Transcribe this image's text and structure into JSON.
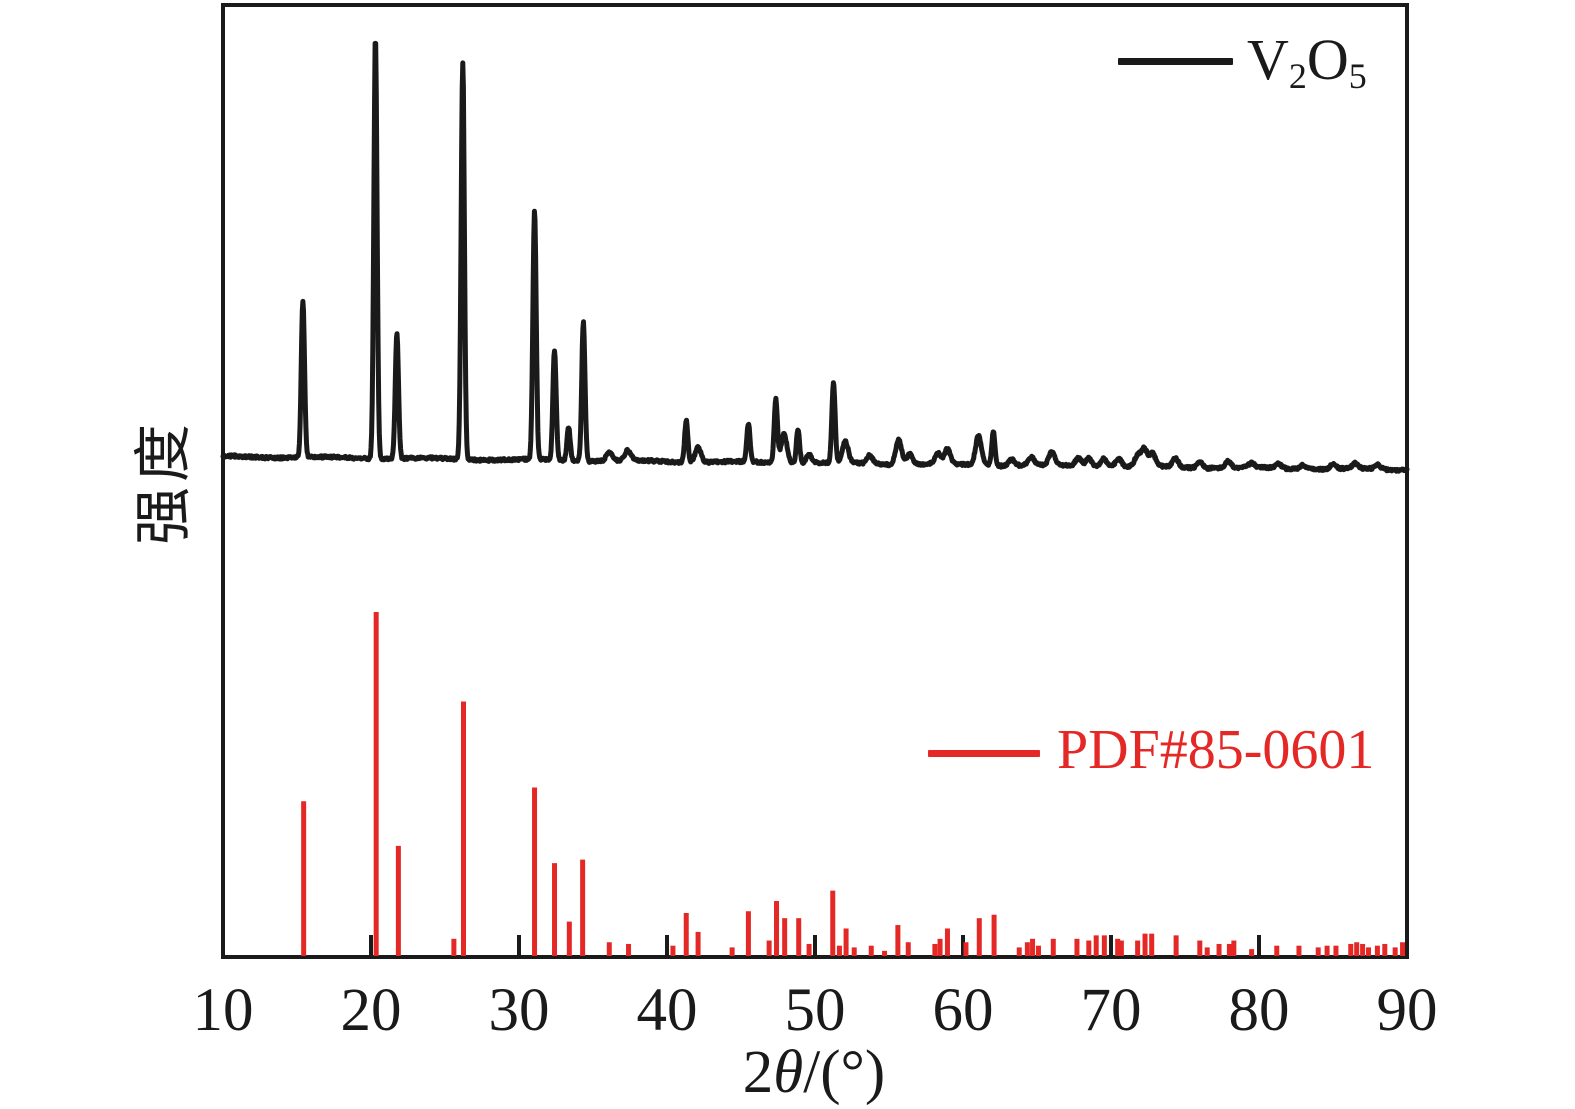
{
  "colors": {
    "axis": "#1a1a1a",
    "trace": "#1a1a1a",
    "reference": "#e32826",
    "background": "#ffffff"
  },
  "axes": {
    "x_tick_labels": [
      "10",
      "20",
      "30",
      "40",
      "50",
      "60",
      "70",
      "80",
      "90"
    ],
    "x_title": {
      "coeff": "2",
      "symbol": "θ",
      "unit": "/(°)"
    },
    "y_title": {
      "label": "强度"
    }
  },
  "legend": {
    "v2o5": {
      "element1": "V",
      "sub1": "2",
      "element2": "O",
      "sub2": "5"
    },
    "pdf": {
      "label": "PDF#85-0601"
    }
  },
  "chart_data": [
    {
      "type": "line",
      "name": "V2O5 measured XRD pattern",
      "legend_label": "V₂O₅",
      "legend_position": "upper right",
      "xlabel": "2θ/(°)",
      "ylabel": "强度",
      "xlim": [
        10,
        90
      ],
      "x_ticks": [
        10,
        20,
        30,
        40,
        50,
        60,
        70,
        80,
        90
      ],
      "grid": false,
      "y_axis": "unlabeled relative intensity, max peak = 100",
      "peaks_2theta_intensity": [
        [
          15.4,
          37
        ],
        [
          20.3,
          100
        ],
        [
          21.75,
          30
        ],
        [
          26.2,
          94
        ],
        [
          31.05,
          59
        ],
        [
          32.4,
          26
        ],
        [
          33.35,
          8
        ],
        [
          34.35,
          33
        ],
        [
          36.1,
          2
        ],
        [
          37.35,
          2.5
        ],
        [
          41.3,
          10
        ],
        [
          42.1,
          3.5
        ],
        [
          45.5,
          9
        ],
        [
          47.35,
          15
        ],
        [
          47.9,
          7
        ],
        [
          48.85,
          8
        ],
        [
          49.6,
          2
        ],
        [
          51.25,
          19
        ],
        [
          52.05,
          5
        ],
        [
          53.7,
          2
        ],
        [
          55.65,
          6
        ],
        [
          56.4,
          2.5
        ],
        [
          58.3,
          2.5
        ],
        [
          58.95,
          3.5
        ],
        [
          61.05,
          7
        ],
        [
          62.05,
          8
        ],
        [
          63.3,
          1.5
        ],
        [
          64.6,
          2
        ],
        [
          66.0,
          3
        ],
        [
          67.8,
          2
        ],
        [
          68.5,
          2
        ],
        [
          69.5,
          2
        ],
        [
          70.5,
          2
        ],
        [
          71.8,
          2.5
        ],
        [
          72.25,
          4
        ],
        [
          72.8,
          3
        ],
        [
          74.35,
          2
        ],
        [
          76.0,
          1.5
        ],
        [
          77.9,
          1.5
        ],
        [
          79.5,
          1
        ],
        [
          81.3,
          1
        ],
        [
          83.0,
          1
        ],
        [
          85.0,
          1
        ],
        [
          86.5,
          1.2
        ],
        [
          88.0,
          1
        ]
      ]
    },
    {
      "type": "bar",
      "name": "PDF#85-0601 reference stick pattern",
      "legend_label": "PDF#85-0601",
      "legend_position": "center right",
      "xlim": [
        10,
        90
      ],
      "y_axis": "relative intensity, max stick = 100",
      "sticks_2theta_intensity": [
        [
          15.45,
          45
        ],
        [
          20.35,
          100
        ],
        [
          21.85,
          32
        ],
        [
          25.6,
          5
        ],
        [
          26.25,
          74
        ],
        [
          31.05,
          49
        ],
        [
          32.4,
          27
        ],
        [
          33.4,
          10
        ],
        [
          34.3,
          28
        ],
        [
          36.1,
          4
        ],
        [
          37.4,
          3.5
        ],
        [
          40.4,
          3
        ],
        [
          41.3,
          12.5
        ],
        [
          42.1,
          7
        ],
        [
          44.4,
          2.5
        ],
        [
          45.5,
          13
        ],
        [
          46.9,
          4.5
        ],
        [
          47.4,
          16
        ],
        [
          47.95,
          11
        ],
        [
          48.9,
          11
        ],
        [
          49.6,
          3.5
        ],
        [
          51.2,
          19
        ],
        [
          51.65,
          3
        ],
        [
          52.1,
          8
        ],
        [
          52.65,
          2.5
        ],
        [
          53.8,
          3
        ],
        [
          54.7,
          1.5
        ],
        [
          55.6,
          9
        ],
        [
          56.3,
          4
        ],
        [
          58.1,
          3.5
        ],
        [
          58.45,
          5
        ],
        [
          58.95,
          8
        ],
        [
          60.2,
          4
        ],
        [
          61.1,
          11
        ],
        [
          62.1,
          12
        ],
        [
          63.8,
          2.5
        ],
        [
          64.35,
          4
        ],
        [
          64.7,
          5
        ],
        [
          65.1,
          3
        ],
        [
          66.1,
          5
        ],
        [
          67.7,
          5
        ],
        [
          68.5,
          4.5
        ],
        [
          69.0,
          6
        ],
        [
          69.55,
          6
        ],
        [
          70.45,
          5
        ],
        [
          70.7,
          4.5
        ],
        [
          71.8,
          4.5
        ],
        [
          72.3,
          6.5
        ],
        [
          72.75,
          6.5
        ],
        [
          74.4,
          6
        ],
        [
          76.0,
          4.5
        ],
        [
          76.5,
          2.5
        ],
        [
          77.3,
          3.5
        ],
        [
          78.0,
          3.5
        ],
        [
          78.3,
          4.5
        ],
        [
          79.5,
          2
        ],
        [
          81.2,
          3
        ],
        [
          82.7,
          3
        ],
        [
          84.0,
          2.5
        ],
        [
          84.6,
          3
        ],
        [
          85.2,
          3
        ],
        [
          86.2,
          3.5
        ],
        [
          86.6,
          4
        ],
        [
          87.0,
          3.5
        ],
        [
          87.4,
          2.5
        ],
        [
          88.0,
          3
        ],
        [
          88.5,
          3.5
        ],
        [
          89.2,
          2.5
        ],
        [
          89.7,
          4
        ]
      ]
    }
  ]
}
